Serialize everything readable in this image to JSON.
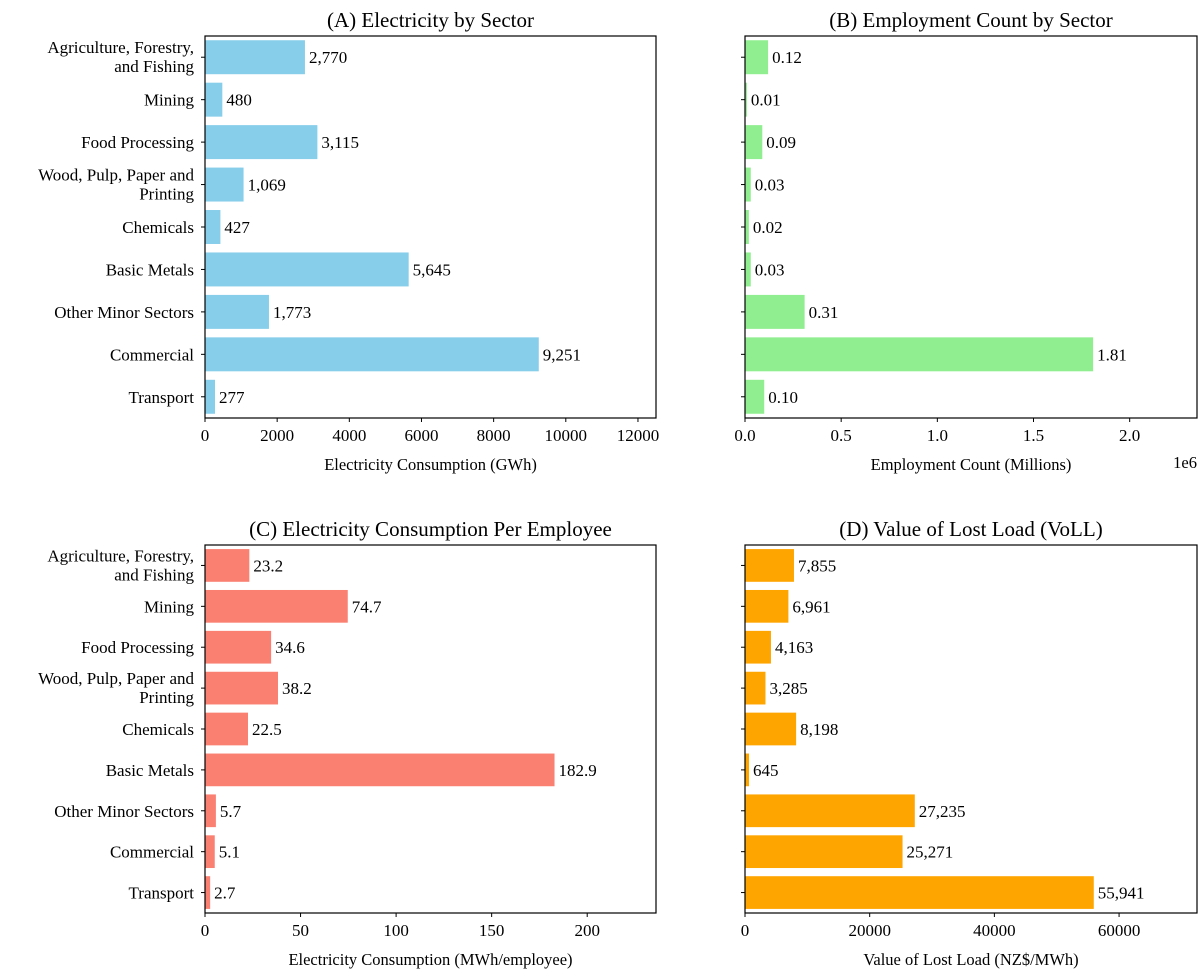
{
  "chart_data": [
    {
      "type": "bar",
      "orientation": "horizontal",
      "title": "(A) Electricity by Sector",
      "xlabel": "Electricity Consumption (GWh)",
      "categories": [
        "Agriculture, Forestry,\nand Fishing",
        "Mining",
        "Food Processing",
        "Wood, Pulp, Paper and\nPrinting",
        "Chemicals",
        "Basic Metals",
        "Other Minor Sectors",
        "Commercial",
        "Transport"
      ],
      "values": [
        2770,
        480,
        3115,
        1069,
        427,
        5645,
        1773,
        9251,
        277
      ],
      "value_labels": [
        "2,770",
        "480",
        "3,115",
        "1,069",
        "427",
        "5,645",
        "1,773",
        "9,251",
        "277"
      ],
      "xlim": [
        0,
        12500
      ],
      "xticks": [
        0,
        2000,
        4000,
        6000,
        8000,
        10000,
        12000
      ],
      "xtick_labels": [
        "0",
        "2000",
        "4000",
        "6000",
        "8000",
        "10000",
        "12000"
      ],
      "show_categories": true,
      "color": "#87CEEB",
      "grid": false
    },
    {
      "type": "bar",
      "orientation": "horizontal",
      "title": "(B) Employment Count by Sector",
      "xlabel": "Employment Count (Millions)",
      "offset_label": "1e6",
      "categories": [
        "Agriculture, Forestry,\nand Fishing",
        "Mining",
        "Food Processing",
        "Wood, Pulp, Paper and\nPrinting",
        "Chemicals",
        "Basic Metals",
        "Other Minor Sectors",
        "Commercial",
        "Transport"
      ],
      "values": [
        0.12,
        0.01,
        0.09,
        0.03,
        0.02,
        0.03,
        0.31,
        1.81,
        0.1
      ],
      "value_labels": [
        "0.12",
        "0.01",
        "0.09",
        "0.03",
        "0.02",
        "0.03",
        "0.31",
        "1.81",
        "0.10"
      ],
      "xlim": [
        0,
        2.35
      ],
      "xticks": [
        0.0,
        0.5,
        1.0,
        1.5,
        2.0
      ],
      "xtick_labels": [
        "0.0",
        "0.5",
        "1.0",
        "1.5",
        "2.0"
      ],
      "show_categories": false,
      "color": "#90EE90",
      "grid": false
    },
    {
      "type": "bar",
      "orientation": "horizontal",
      "title": "(C) Electricity Consumption Per Employee",
      "xlabel": "Electricity Consumption (MWh/employee)",
      "categories": [
        "Agriculture, Forestry,\nand Fishing",
        "Mining",
        "Food Processing",
        "Wood, Pulp, Paper and\nPrinting",
        "Chemicals",
        "Basic Metals",
        "Other Minor Sectors",
        "Commercial",
        "Transport"
      ],
      "values": [
        23.2,
        74.7,
        34.6,
        38.2,
        22.5,
        182.9,
        5.7,
        5.1,
        2.7
      ],
      "value_labels": [
        "23.2",
        "74.7",
        "34.6",
        "38.2",
        "22.5",
        "182.9",
        "5.7",
        "5.1",
        "2.7"
      ],
      "xlim": [
        0,
        236
      ],
      "xticks": [
        0,
        50,
        100,
        150,
        200
      ],
      "xtick_labels": [
        "0",
        "50",
        "100",
        "150",
        "200"
      ],
      "show_categories": true,
      "color": "#FA8072",
      "grid": false
    },
    {
      "type": "bar",
      "orientation": "horizontal",
      "title": "(D) Value of Lost Load (VoLL)",
      "xlabel": "Value of Lost Load (NZ$/MWh)",
      "categories": [
        "Agriculture, Forestry,\nand Fishing",
        "Mining",
        "Food Processing",
        "Wood, Pulp, Paper and\nPrinting",
        "Chemicals",
        "Basic Metals",
        "Other Minor Sectors",
        "Commercial",
        "Transport"
      ],
      "values": [
        7855,
        6961,
        4163,
        3285,
        8198,
        645,
        27235,
        25271,
        55941
      ],
      "value_labels": [
        "7,855",
        "6,961",
        "4,163",
        "3,285",
        "8,198",
        "645",
        "27,235",
        "25,271",
        "55,941"
      ],
      "xlim": [
        0,
        72500
      ],
      "xticks": [
        0,
        20000,
        40000,
        60000
      ],
      "xtick_labels": [
        "0",
        "20000",
        "40000",
        "60000"
      ],
      "show_categories": false,
      "color": "#FFA500",
      "grid": false
    }
  ]
}
